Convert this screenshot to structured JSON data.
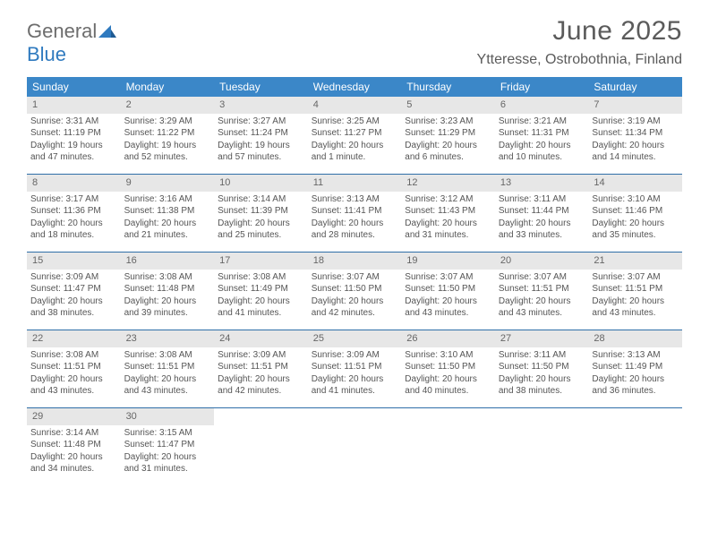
{
  "logo": {
    "word1": "General",
    "word2": "Blue"
  },
  "title": "June 2025",
  "location": "Ytteresse, Ostrobothnia, Finland",
  "colors": {
    "header_bg": "#3b87c8",
    "daynum_bg": "#e7e7e7",
    "week_border": "#2f6fa8",
    "text": "#555555",
    "title_text": "#5b5b5b"
  },
  "dow": [
    "Sunday",
    "Monday",
    "Tuesday",
    "Wednesday",
    "Thursday",
    "Friday",
    "Saturday"
  ],
  "weeks": [
    [
      {
        "n": "1",
        "sr": "Sunrise: 3:31 AM",
        "ss": "Sunset: 11:19 PM",
        "dl": "Daylight: 19 hours and 47 minutes."
      },
      {
        "n": "2",
        "sr": "Sunrise: 3:29 AM",
        "ss": "Sunset: 11:22 PM",
        "dl": "Daylight: 19 hours and 52 minutes."
      },
      {
        "n": "3",
        "sr": "Sunrise: 3:27 AM",
        "ss": "Sunset: 11:24 PM",
        "dl": "Daylight: 19 hours and 57 minutes."
      },
      {
        "n": "4",
        "sr": "Sunrise: 3:25 AM",
        "ss": "Sunset: 11:27 PM",
        "dl": "Daylight: 20 hours and 1 minute."
      },
      {
        "n": "5",
        "sr": "Sunrise: 3:23 AM",
        "ss": "Sunset: 11:29 PM",
        "dl": "Daylight: 20 hours and 6 minutes."
      },
      {
        "n": "6",
        "sr": "Sunrise: 3:21 AM",
        "ss": "Sunset: 11:31 PM",
        "dl": "Daylight: 20 hours and 10 minutes."
      },
      {
        "n": "7",
        "sr": "Sunrise: 3:19 AM",
        "ss": "Sunset: 11:34 PM",
        "dl": "Daylight: 20 hours and 14 minutes."
      }
    ],
    [
      {
        "n": "8",
        "sr": "Sunrise: 3:17 AM",
        "ss": "Sunset: 11:36 PM",
        "dl": "Daylight: 20 hours and 18 minutes."
      },
      {
        "n": "9",
        "sr": "Sunrise: 3:16 AM",
        "ss": "Sunset: 11:38 PM",
        "dl": "Daylight: 20 hours and 21 minutes."
      },
      {
        "n": "10",
        "sr": "Sunrise: 3:14 AM",
        "ss": "Sunset: 11:39 PM",
        "dl": "Daylight: 20 hours and 25 minutes."
      },
      {
        "n": "11",
        "sr": "Sunrise: 3:13 AM",
        "ss": "Sunset: 11:41 PM",
        "dl": "Daylight: 20 hours and 28 minutes."
      },
      {
        "n": "12",
        "sr": "Sunrise: 3:12 AM",
        "ss": "Sunset: 11:43 PM",
        "dl": "Daylight: 20 hours and 31 minutes."
      },
      {
        "n": "13",
        "sr": "Sunrise: 3:11 AM",
        "ss": "Sunset: 11:44 PM",
        "dl": "Daylight: 20 hours and 33 minutes."
      },
      {
        "n": "14",
        "sr": "Sunrise: 3:10 AM",
        "ss": "Sunset: 11:46 PM",
        "dl": "Daylight: 20 hours and 35 minutes."
      }
    ],
    [
      {
        "n": "15",
        "sr": "Sunrise: 3:09 AM",
        "ss": "Sunset: 11:47 PM",
        "dl": "Daylight: 20 hours and 38 minutes."
      },
      {
        "n": "16",
        "sr": "Sunrise: 3:08 AM",
        "ss": "Sunset: 11:48 PM",
        "dl": "Daylight: 20 hours and 39 minutes."
      },
      {
        "n": "17",
        "sr": "Sunrise: 3:08 AM",
        "ss": "Sunset: 11:49 PM",
        "dl": "Daylight: 20 hours and 41 minutes."
      },
      {
        "n": "18",
        "sr": "Sunrise: 3:07 AM",
        "ss": "Sunset: 11:50 PM",
        "dl": "Daylight: 20 hours and 42 minutes."
      },
      {
        "n": "19",
        "sr": "Sunrise: 3:07 AM",
        "ss": "Sunset: 11:50 PM",
        "dl": "Daylight: 20 hours and 43 minutes."
      },
      {
        "n": "20",
        "sr": "Sunrise: 3:07 AM",
        "ss": "Sunset: 11:51 PM",
        "dl": "Daylight: 20 hours and 43 minutes."
      },
      {
        "n": "21",
        "sr": "Sunrise: 3:07 AM",
        "ss": "Sunset: 11:51 PM",
        "dl": "Daylight: 20 hours and 43 minutes."
      }
    ],
    [
      {
        "n": "22",
        "sr": "Sunrise: 3:08 AM",
        "ss": "Sunset: 11:51 PM",
        "dl": "Daylight: 20 hours and 43 minutes."
      },
      {
        "n": "23",
        "sr": "Sunrise: 3:08 AM",
        "ss": "Sunset: 11:51 PM",
        "dl": "Daylight: 20 hours and 43 minutes."
      },
      {
        "n": "24",
        "sr": "Sunrise: 3:09 AM",
        "ss": "Sunset: 11:51 PM",
        "dl": "Daylight: 20 hours and 42 minutes."
      },
      {
        "n": "25",
        "sr": "Sunrise: 3:09 AM",
        "ss": "Sunset: 11:51 PM",
        "dl": "Daylight: 20 hours and 41 minutes."
      },
      {
        "n": "26",
        "sr": "Sunrise: 3:10 AM",
        "ss": "Sunset: 11:50 PM",
        "dl": "Daylight: 20 hours and 40 minutes."
      },
      {
        "n": "27",
        "sr": "Sunrise: 3:11 AM",
        "ss": "Sunset: 11:50 PM",
        "dl": "Daylight: 20 hours and 38 minutes."
      },
      {
        "n": "28",
        "sr": "Sunrise: 3:13 AM",
        "ss": "Sunset: 11:49 PM",
        "dl": "Daylight: 20 hours and 36 minutes."
      }
    ],
    [
      {
        "n": "29",
        "sr": "Sunrise: 3:14 AM",
        "ss": "Sunset: 11:48 PM",
        "dl": "Daylight: 20 hours and 34 minutes."
      },
      {
        "n": "30",
        "sr": "Sunrise: 3:15 AM",
        "ss": "Sunset: 11:47 PM",
        "dl": "Daylight: 20 hours and 31 minutes."
      },
      {
        "empty": true
      },
      {
        "empty": true
      },
      {
        "empty": true
      },
      {
        "empty": true
      },
      {
        "empty": true
      }
    ]
  ]
}
